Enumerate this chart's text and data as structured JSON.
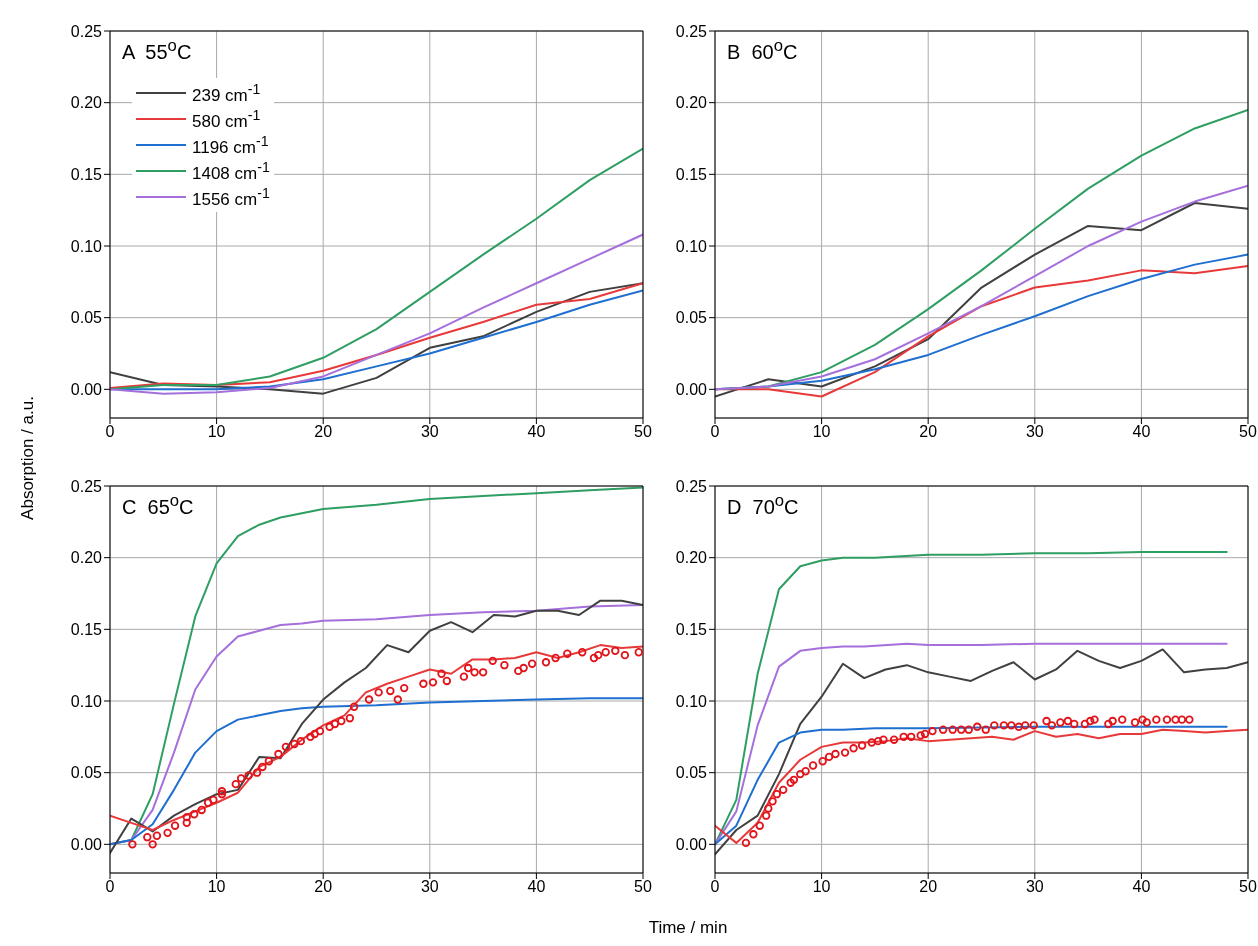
{
  "chart_data": [
    {
      "type": "line",
      "title": "A  55$^{o}$C",
      "ylabel": "Absorption / a.u.",
      "xlim": [
        0,
        50
      ],
      "xticks": [
        0,
        10,
        20,
        30,
        40,
        50
      ],
      "ylim": [
        -0.02,
        0.25
      ],
      "yticks": [
        {
          "value": 0,
          "label": "0.00"
        },
        {
          "value": 0.05,
          "label": "0.05"
        },
        {
          "value": 0.1,
          "label": "0.10"
        },
        {
          "value": 0.15,
          "label": "0.15"
        },
        {
          "value": 0.2,
          "label": "0.20"
        },
        {
          "value": 0.25,
          "label": "0.25"
        }
      ],
      "grid": true,
      "legend": "top left",
      "marker": "none",
      "line_style": "solid",
      "x": [
        0,
        5,
        10,
        15,
        20,
        25,
        30,
        35,
        40,
        45,
        50
      ],
      "series": [
        {
          "name": "239 cm$^{-1}$",
          "color": "#404040",
          "values": [
            0.012,
            0.003,
            0.002,
            0.0,
            -0.003,
            0.008,
            0.029,
            0.037,
            0.054,
            0.068,
            0.074
          ]
        },
        {
          "name": "580 cm$^{-1}$",
          "color": "#e8393a",
          "values": [
            0.001,
            0.004,
            0.003,
            0.005,
            0.013,
            0.024,
            0.036,
            0.047,
            0.059,
            0.063,
            0.074
          ]
        },
        {
          "name": "1196 cm$^{-1}$",
          "color": "#1f6fd0",
          "values": [
            0.0,
            0.0,
            0.0,
            0.002,
            0.007,
            0.016,
            0.025,
            0.036,
            0.047,
            0.059,
            0.069
          ]
        },
        {
          "name": "1408 cm$^{-1}$",
          "color": "#2e9e62",
          "values": [
            0.0,
            0.003,
            0.003,
            0.009,
            0.022,
            0.042,
            0.068,
            0.094,
            0.119,
            0.146,
            0.168
          ]
        },
        {
          "name": "1556 cm$^{-1}$",
          "color": "#a56fdc",
          "values": [
            0.0,
            -0.003,
            -0.002,
            0.001,
            0.009,
            0.024,
            0.039,
            0.057,
            0.074,
            0.091,
            0.108
          ]
        }
      ]
    },
    {
      "type": "line",
      "title": "B  60$^{o}$C",
      "xlim": [
        0,
        50
      ],
      "xticks": [
        0,
        10,
        20,
        30,
        40,
        50
      ],
      "ylim": [
        -0.02,
        0.25
      ],
      "yticks": [
        {
          "value": 0,
          "label": "0.00"
        },
        {
          "value": 0.05,
          "label": "0.05"
        },
        {
          "value": 0.1,
          "label": "0.10"
        },
        {
          "value": 0.15,
          "label": "0.15"
        },
        {
          "value": 0.2,
          "label": "0.20"
        },
        {
          "value": 0.25,
          "label": "0.25"
        }
      ],
      "grid": true,
      "marker": "none",
      "line_style": "solid",
      "x": [
        0,
        5,
        10,
        15,
        20,
        25,
        30,
        35,
        40,
        45,
        50
      ],
      "series": [
        {
          "color": "#404040",
          "values": [
            -0.005,
            0.007,
            0.002,
            0.016,
            0.035,
            0.071,
            0.094,
            0.114,
            0.111,
            0.13,
            0.126
          ]
        },
        {
          "color": "#e8393a",
          "values": [
            0.0,
            0.0,
            -0.005,
            0.012,
            0.037,
            0.058,
            0.071,
            0.076,
            0.083,
            0.081,
            0.086
          ]
        },
        {
          "color": "#1f6fd0",
          "values": [
            0.0,
            0.002,
            0.006,
            0.014,
            0.024,
            0.038,
            0.051,
            0.065,
            0.077,
            0.087,
            0.094
          ]
        },
        {
          "color": "#2e9e62",
          "values": [
            0.0,
            0.002,
            0.012,
            0.031,
            0.056,
            0.083,
            0.112,
            0.14,
            0.163,
            0.182,
            0.195
          ]
        },
        {
          "color": "#a56fdc",
          "values": [
            0.0,
            0.002,
            0.009,
            0.021,
            0.039,
            0.058,
            0.079,
            0.1,
            0.117,
            0.131,
            0.142
          ]
        }
      ]
    },
    {
      "type": "line",
      "title": "C  65$^{o}$C",
      "xlabel": "Time / min",
      "xlim": [
        0,
        50
      ],
      "xticks": [
        0,
        10,
        20,
        30,
        40,
        50
      ],
      "ylim": [
        -0.02,
        0.25
      ],
      "yticks": [
        {
          "value": 0,
          "label": "0.00"
        },
        {
          "value": 0.05,
          "label": "0.05"
        },
        {
          "value": 0.1,
          "label": "0.10"
        },
        {
          "value": 0.15,
          "label": "0.15"
        },
        {
          "value": 0.2,
          "label": "0.20"
        },
        {
          "value": 0.25,
          "label": "0.25"
        }
      ],
      "grid": true,
      "marker": "none",
      "line_style": "solid",
      "series": [
        {
          "color": "#2e9e62",
          "x": [
            0,
            2,
            4,
            6,
            8,
            10,
            12,
            14,
            16,
            18,
            20,
            25,
            30,
            35,
            40,
            45,
            50
          ],
          "values": [
            0.0,
            0.003,
            0.035,
            0.098,
            0.159,
            0.196,
            0.215,
            0.223,
            0.228,
            0.231,
            0.234,
            0.237,
            0.241,
            0.243,
            0.245,
            0.247,
            0.249
          ]
        },
        {
          "color": "#a56fdc",
          "x": [
            0,
            2,
            4,
            6,
            8,
            10,
            12,
            14,
            16,
            18,
            20,
            25,
            30,
            35,
            40,
            45,
            50
          ],
          "values": [
            0.0,
            0.003,
            0.024,
            0.064,
            0.108,
            0.131,
            0.145,
            0.149,
            0.153,
            0.154,
            0.156,
            0.157,
            0.16,
            0.162,
            0.163,
            0.166,
            0.167
          ]
        },
        {
          "color": "#1f6fd0",
          "x": [
            0,
            2,
            4,
            6,
            8,
            10,
            12,
            14,
            16,
            18,
            20,
            25,
            30,
            35,
            40,
            45,
            50
          ],
          "values": [
            0.0,
            0.003,
            0.014,
            0.038,
            0.064,
            0.079,
            0.087,
            0.09,
            0.093,
            0.095,
            0.096,
            0.097,
            0.099,
            0.1,
            0.101,
            0.102,
            0.102
          ]
        },
        {
          "color": "#404040",
          "x": [
            0,
            2,
            4,
            6,
            8,
            10,
            12,
            14,
            16,
            18,
            20,
            22,
            24,
            26,
            28,
            30,
            32,
            34,
            36,
            38,
            40,
            42,
            44,
            46,
            48,
            50
          ],
          "values": [
            -0.006,
            0.018,
            0.009,
            0.02,
            0.028,
            0.035,
            0.038,
            0.061,
            0.06,
            0.084,
            0.101,
            0.113,
            0.123,
            0.139,
            0.134,
            0.149,
            0.155,
            0.148,
            0.16,
            0.159,
            0.163,
            0.163,
            0.16,
            0.17,
            0.17,
            0.167
          ]
        },
        {
          "color": "#e8393a",
          "x": [
            0,
            2,
            4,
            6,
            8,
            10,
            12,
            14,
            16,
            18,
            20,
            22,
            24,
            26,
            28,
            30,
            32,
            34,
            36,
            38,
            40,
            42,
            44,
            46,
            48,
            50
          ],
          "values": [
            0.02,
            0.015,
            0.01,
            0.017,
            0.023,
            0.029,
            0.036,
            0.054,
            0.061,
            0.073,
            0.083,
            0.09,
            0.106,
            0.112,
            0.117,
            0.122,
            0.119,
            0.129,
            0.129,
            0.13,
            0.134,
            0.13,
            0.134,
            0.139,
            0.137,
            0.138
          ]
        },
        {
          "type": "scatter",
          "marker": "circle",
          "color": "#e0141a",
          "x": [
            2.1,
            3.5,
            4.0,
            4.4,
            5.4,
            6.1,
            7.2,
            7.2,
            7.9,
            8.6,
            9.2,
            9.7,
            10.5,
            10.5,
            11.8,
            12.3,
            13.0,
            13.8,
            14.3,
            14.9,
            15.8,
            16.5,
            17.3,
            17.9,
            18.8,
            19.2,
            19.7,
            20.6,
            21.1,
            21.7,
            22.5,
            22.9,
            24.3,
            25.2,
            26.3,
            27.0,
            27.6,
            29.4,
            30.3,
            31.1,
            31.6,
            33.2,
            33.6,
            34.2,
            35.0,
            35.9,
            37.0,
            38.3,
            38.8,
            39.6,
            40.9,
            41.8,
            42.9,
            44.3,
            45.4,
            45.8,
            46.5,
            47.4,
            48.3,
            49.6
          ],
          "values": [
            0.0,
            0.005,
            0.0,
            0.006,
            0.008,
            0.013,
            0.015,
            0.019,
            0.021,
            0.024,
            0.029,
            0.031,
            0.035,
            0.037,
            0.042,
            0.046,
            0.048,
            0.05,
            0.054,
            0.058,
            0.063,
            0.068,
            0.07,
            0.072,
            0.075,
            0.077,
            0.079,
            0.082,
            0.084,
            0.086,
            0.088,
            0.096,
            0.101,
            0.106,
            0.107,
            0.101,
            0.109,
            0.112,
            0.113,
            0.119,
            0.114,
            0.117,
            0.123,
            0.12,
            0.12,
            0.128,
            0.125,
            0.121,
            0.123,
            0.126,
            0.127,
            0.13,
            0.133,
            0.134,
            0.13,
            0.132,
            0.134,
            0.135,
            0.132,
            0.134
          ]
        }
      ]
    },
    {
      "type": "line",
      "title": "D  70$^{o}$C",
      "xlim": [
        0,
        50
      ],
      "xticks": [
        0,
        10,
        20,
        30,
        40,
        50
      ],
      "ylim": [
        -0.02,
        0.25
      ],
      "yticks": [
        {
          "value": 0,
          "label": "0.00"
        },
        {
          "value": 0.05,
          "label": "0.05"
        },
        {
          "value": 0.1,
          "label": "0.10"
        },
        {
          "value": 0.15,
          "label": "0.15"
        },
        {
          "value": 0.2,
          "label": "0.20"
        },
        {
          "value": 0.25,
          "label": "0.25"
        }
      ],
      "grid": true,
      "marker": "none",
      "line_style": "solid",
      "series": [
        {
          "color": "#2e9e62",
          "x": [
            0,
            2,
            4,
            6,
            8,
            10,
            12,
            15,
            20,
            25,
            30,
            35,
            40,
            45,
            48
          ],
          "values": [
            0.0,
            0.031,
            0.119,
            0.178,
            0.194,
            0.198,
            0.2,
            0.2,
            0.202,
            0.202,
            0.203,
            0.203,
            0.204,
            0.204,
            0.204
          ]
        },
        {
          "color": "#a56fdc",
          "x": [
            0,
            2,
            4,
            6,
            8,
            10,
            12,
            14,
            18,
            20,
            25,
            30,
            35,
            40,
            45,
            48
          ],
          "values": [
            0.0,
            0.023,
            0.083,
            0.124,
            0.135,
            0.137,
            0.138,
            0.138,
            0.14,
            0.139,
            0.139,
            0.14,
            0.14,
            0.14,
            0.14,
            0.14
          ]
        },
        {
          "color": "#404040",
          "x": [
            0,
            2,
            4,
            6,
            8,
            10,
            12,
            14,
            16,
            18,
            20,
            22,
            24,
            26,
            28,
            30,
            32,
            34,
            36,
            38,
            40,
            42,
            44,
            46,
            48,
            50
          ],
          "values": [
            -0.007,
            0.01,
            0.02,
            0.049,
            0.084,
            0.103,
            0.126,
            0.116,
            0.122,
            0.125,
            0.12,
            0.117,
            0.114,
            0.121,
            0.127,
            0.115,
            0.122,
            0.135,
            0.128,
            0.123,
            0.128,
            0.136,
            0.12,
            0.122,
            0.123,
            0.127
          ]
        },
        {
          "color": "#1f6fd0",
          "x": [
            0,
            2,
            4,
            6,
            8,
            10,
            12,
            15,
            20,
            30,
            40,
            48
          ],
          "values": [
            0.0,
            0.013,
            0.045,
            0.071,
            0.078,
            0.08,
            0.08,
            0.081,
            0.081,
            0.082,
            0.082,
            0.082
          ]
        },
        {
          "color": "#e8393a",
          "x": [
            0,
            2,
            4,
            6,
            8,
            10,
            12,
            14,
            16,
            18,
            20,
            22,
            24,
            26,
            28,
            30,
            32,
            34,
            36,
            38,
            40,
            42,
            44,
            46,
            48,
            50
          ],
          "values": [
            0.013,
            0.001,
            0.015,
            0.043,
            0.059,
            0.068,
            0.071,
            0.071,
            0.072,
            0.074,
            0.072,
            0.073,
            0.074,
            0.075,
            0.073,
            0.079,
            0.075,
            0.077,
            0.074,
            0.077,
            0.077,
            0.08,
            0.079,
            0.078,
            0.079,
            0.08
          ]
        },
        {
          "type": "scatter",
          "marker": "circle",
          "color": "#e0141a",
          "x": [
            2.9,
            3.6,
            4.2,
            4.8,
            5.0,
            5.4,
            5.8,
            6.4,
            7.1,
            7.4,
            8.0,
            8.5,
            9.2,
            10.1,
            10.7,
            11.3,
            12.2,
            13.0,
            13.8,
            14.7,
            15.3,
            15.8,
            16.8,
            17.7,
            18.4,
            19.3,
            19.7,
            20.4,
            21.4,
            22.3,
            23.1,
            23.8,
            24.6,
            25.4,
            26.2,
            27.1,
            27.8,
            28.5,
            29.1,
            29.9,
            31.1,
            31.6,
            32.4,
            33.1,
            33.7,
            34.7,
            35.2,
            35.6,
            36.9,
            37.3,
            38.2,
            39.4,
            40.1,
            40.5,
            41.4,
            42.4,
            43.2,
            43.8,
            44.5
          ],
          "values": [
            0.001,
            0.007,
            0.013,
            0.02,
            0.025,
            0.03,
            0.035,
            0.038,
            0.043,
            0.045,
            0.049,
            0.051,
            0.055,
            0.058,
            0.061,
            0.063,
            0.064,
            0.067,
            0.069,
            0.071,
            0.072,
            0.073,
            0.073,
            0.075,
            0.075,
            0.076,
            0.077,
            0.079,
            0.08,
            0.08,
            0.08,
            0.08,
            0.082,
            0.08,
            0.083,
            0.083,
            0.083,
            0.082,
            0.083,
            0.083,
            0.086,
            0.083,
            0.085,
            0.086,
            0.084,
            0.084,
            0.086,
            0.087,
            0.084,
            0.086,
            0.087,
            0.085,
            0.087,
            0.085,
            0.087,
            0.087,
            0.087,
            0.087,
            0.087
          ]
        }
      ]
    }
  ]
}
